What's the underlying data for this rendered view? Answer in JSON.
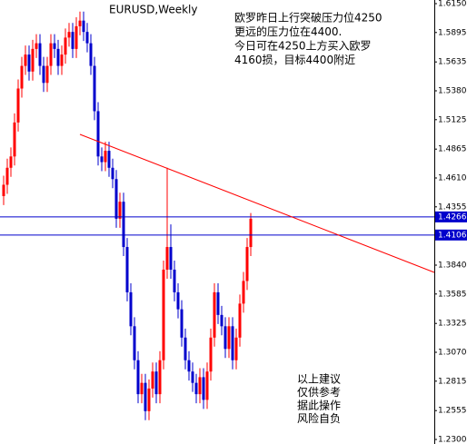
{
  "chart_data": {
    "type": "candlestick",
    "title": "EURUSD,Weekly",
    "annotation": [
      "欧罗昨日上行突破压力位4250",
      "更远的压力位在4400.",
      "今日可在4250上方买入欧罗",
      "4160损，目标4400附近"
    ],
    "note": [
      "以上建议",
      "仅供参考",
      "据此操作",
      "风险自负"
    ],
    "up_color": "#ff0000",
    "down_color": "#0000cc",
    "open": [
      1.445,
      1.455,
      1.47,
      1.48,
      1.51,
      1.54,
      1.56,
      1.57,
      1.555,
      1.575,
      1.58,
      1.56,
      1.545,
      1.56,
      1.58,
      1.575,
      1.56,
      1.57,
      1.585,
      1.59,
      1.575,
      1.595,
      1.6,
      1.59,
      1.58,
      1.56,
      1.52,
      1.48,
      1.475,
      1.485,
      1.47,
      1.46,
      1.425,
      1.44,
      1.4,
      1.36,
      1.33,
      1.3,
      1.27,
      1.28,
      1.255,
      1.275,
      1.29,
      1.27,
      1.3,
      1.38,
      1.4,
      1.38,
      1.36,
      1.345,
      1.32,
      1.3,
      1.29,
      1.28,
      1.27,
      1.285,
      1.265,
      1.29,
      1.32,
      1.36,
      1.34,
      1.33,
      1.31,
      1.33,
      1.3,
      1.32,
      1.35,
      1.37,
      1.4
    ],
    "high": [
      1.463,
      1.478,
      1.488,
      1.518,
      1.548,
      1.568,
      1.578,
      1.578,
      1.583,
      1.588,
      1.588,
      1.568,
      1.568,
      1.588,
      1.588,
      1.583,
      1.578,
      1.593,
      1.598,
      1.598,
      1.603,
      1.608,
      1.608,
      1.598,
      1.588,
      1.568,
      1.528,
      1.488,
      1.493,
      1.493,
      1.478,
      1.468,
      1.448,
      1.448,
      1.408,
      1.368,
      1.338,
      1.308,
      1.288,
      1.288,
      1.283,
      1.298,
      1.298,
      1.308,
      1.388,
      1.47,
      1.42,
      1.388,
      1.368,
      1.353,
      1.328,
      1.308,
      1.298,
      1.288,
      1.293,
      1.293,
      1.298,
      1.328,
      1.368,
      1.368,
      1.348,
      1.338,
      1.338,
      1.338,
      1.328,
      1.358,
      1.378,
      1.408,
      1.43
    ],
    "low": [
      1.437,
      1.447,
      1.462,
      1.472,
      1.502,
      1.532,
      1.552,
      1.547,
      1.547,
      1.567,
      1.552,
      1.537,
      1.537,
      1.552,
      1.567,
      1.552,
      1.552,
      1.562,
      1.577,
      1.567,
      1.567,
      1.587,
      1.582,
      1.572,
      1.552,
      1.512,
      1.472,
      1.467,
      1.467,
      1.462,
      1.452,
      1.417,
      1.417,
      1.392,
      1.352,
      1.322,
      1.292,
      1.262,
      1.262,
      1.247,
      1.247,
      1.267,
      1.262,
      1.262,
      1.292,
      1.372,
      1.372,
      1.352,
      1.337,
      1.312,
      1.292,
      1.282,
      1.272,
      1.262,
      1.262,
      1.257,
      1.257,
      1.282,
      1.312,
      1.332,
      1.322,
      1.302,
      1.302,
      1.292,
      1.292,
      1.312,
      1.342,
      1.362,
      1.392
    ],
    "close": [
      1.455,
      1.47,
      1.48,
      1.51,
      1.54,
      1.56,
      1.57,
      1.555,
      1.575,
      1.58,
      1.56,
      1.545,
      1.56,
      1.58,
      1.575,
      1.56,
      1.57,
      1.585,
      1.59,
      1.575,
      1.595,
      1.6,
      1.59,
      1.58,
      1.56,
      1.52,
      1.48,
      1.475,
      1.485,
      1.47,
      1.46,
      1.425,
      1.44,
      1.4,
      1.36,
      1.33,
      1.3,
      1.27,
      1.28,
      1.255,
      1.275,
      1.29,
      1.27,
      1.3,
      1.38,
      1.4,
      1.38,
      1.36,
      1.345,
      1.32,
      1.3,
      1.29,
      1.28,
      1.27,
      1.285,
      1.265,
      1.29,
      1.32,
      1.36,
      1.34,
      1.33,
      1.31,
      1.33,
      1.3,
      1.32,
      1.35,
      1.37,
      1.4,
      1.425
    ],
    "hlines": [
      {
        "value": 1.4266,
        "color": "#0000cc"
      },
      {
        "value": 1.4106,
        "color": "#0000cc"
      }
    ],
    "trendline": {
      "color": "#ff0000",
      "from": [
        21,
        1.4995
      ],
      "to": [
        118.5,
        1.3776
      ]
    },
    "ylim": [
      1.23,
      1.615
    ],
    "yticks": [
      {
        "value": 1.615,
        "label": "1.6150"
      },
      1.5895,
      1.5635,
      {
        "value": 1.538,
        "label": "1.5380"
      },
      1.5125,
      1.4865,
      {
        "value": 1.461,
        "label": "1.4610"
      },
      1.4355,
      {
        "value": 1.384,
        "label": "1.3840"
      },
      1.3585,
      1.3325,
      {
        "value": 1.307,
        "label": "1.3070"
      },
      1.2815,
      1.2555,
      {
        "value": 1.23,
        "label": "1.2300"
      }
    ]
  }
}
